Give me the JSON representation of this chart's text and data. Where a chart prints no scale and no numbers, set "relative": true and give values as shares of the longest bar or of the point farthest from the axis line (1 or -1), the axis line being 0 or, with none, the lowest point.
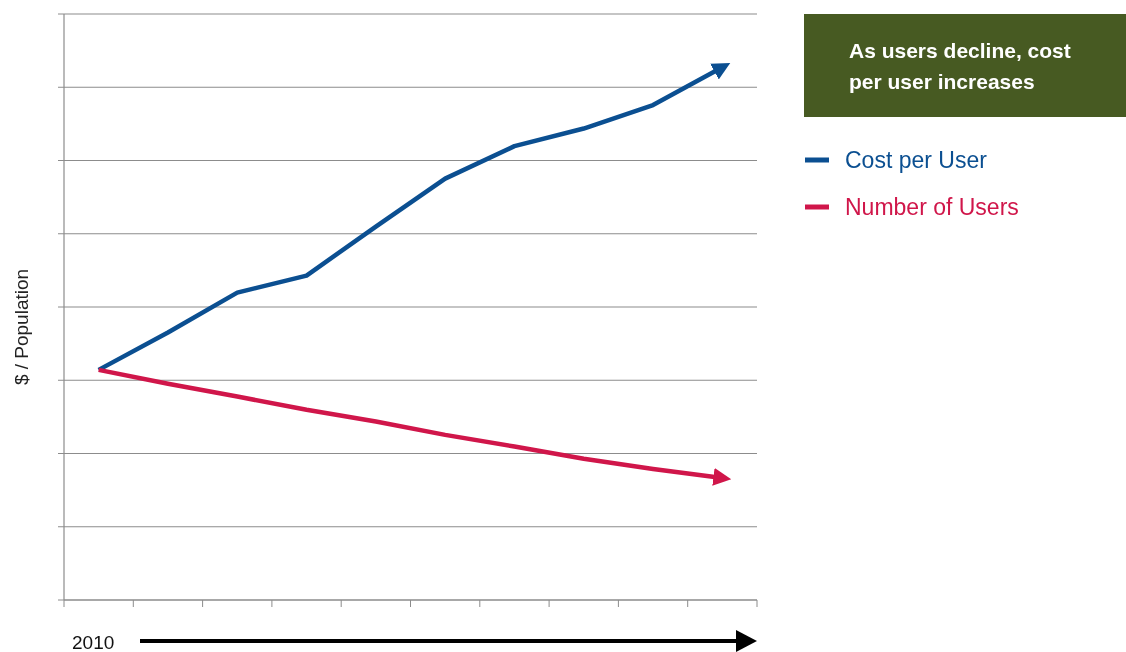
{
  "chart_data": {
    "type": "line",
    "relative": true,
    "ylabel": "$ / Population",
    "xlabel": "2010",
    "categories": [
      null,
      null,
      null,
      null,
      null,
      null,
      null,
      null,
      null,
      null
    ],
    "series": [
      {
        "name": "Cost per User",
        "color": "#0b4f91",
        "values": [
          0.432,
          0.502,
          0.577,
          0.609,
          0.701,
          0.791,
          0.852,
          0.885,
          0.929,
          1
        ]
      },
      {
        "name": "Number of Users",
        "color": "#d0164a",
        "values": [
          0.432,
          0.406,
          0.382,
          0.357,
          0.335,
          0.31,
          0.288,
          0.265,
          0.246,
          0.229
        ]
      }
    ],
    "annotations": [
      "As users decline, cost per user increases"
    ],
    "grid": "y",
    "legend": "top right",
    "marker": "none",
    "line_style": "solid"
  }
}
